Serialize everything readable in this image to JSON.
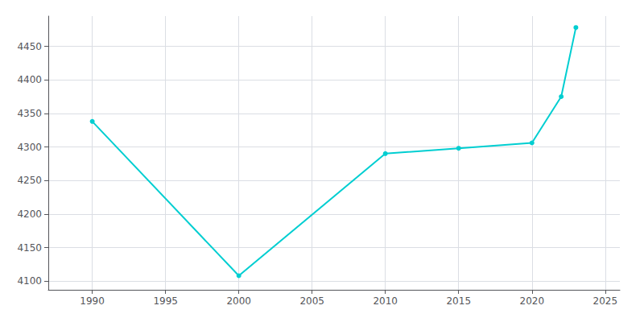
{
  "chart_data": {
    "type": "line",
    "x": [
      1990,
      2000,
      2010,
      2015,
      2020,
      2022,
      2023
    ],
    "values": [
      4338,
      4108,
      4290,
      4298,
      4306,
      4375,
      4478
    ],
    "color": "#00CED1",
    "marker": "circle",
    "xlim": [
      1987,
      2026
    ],
    "ylim": [
      4087,
      4495
    ],
    "xticks": [
      1990,
      1995,
      2000,
      2005,
      2010,
      2015,
      2020,
      2025
    ],
    "yticks": [
      4100,
      4150,
      4200,
      4250,
      4300,
      4350,
      4400,
      4450
    ],
    "grid": true
  }
}
